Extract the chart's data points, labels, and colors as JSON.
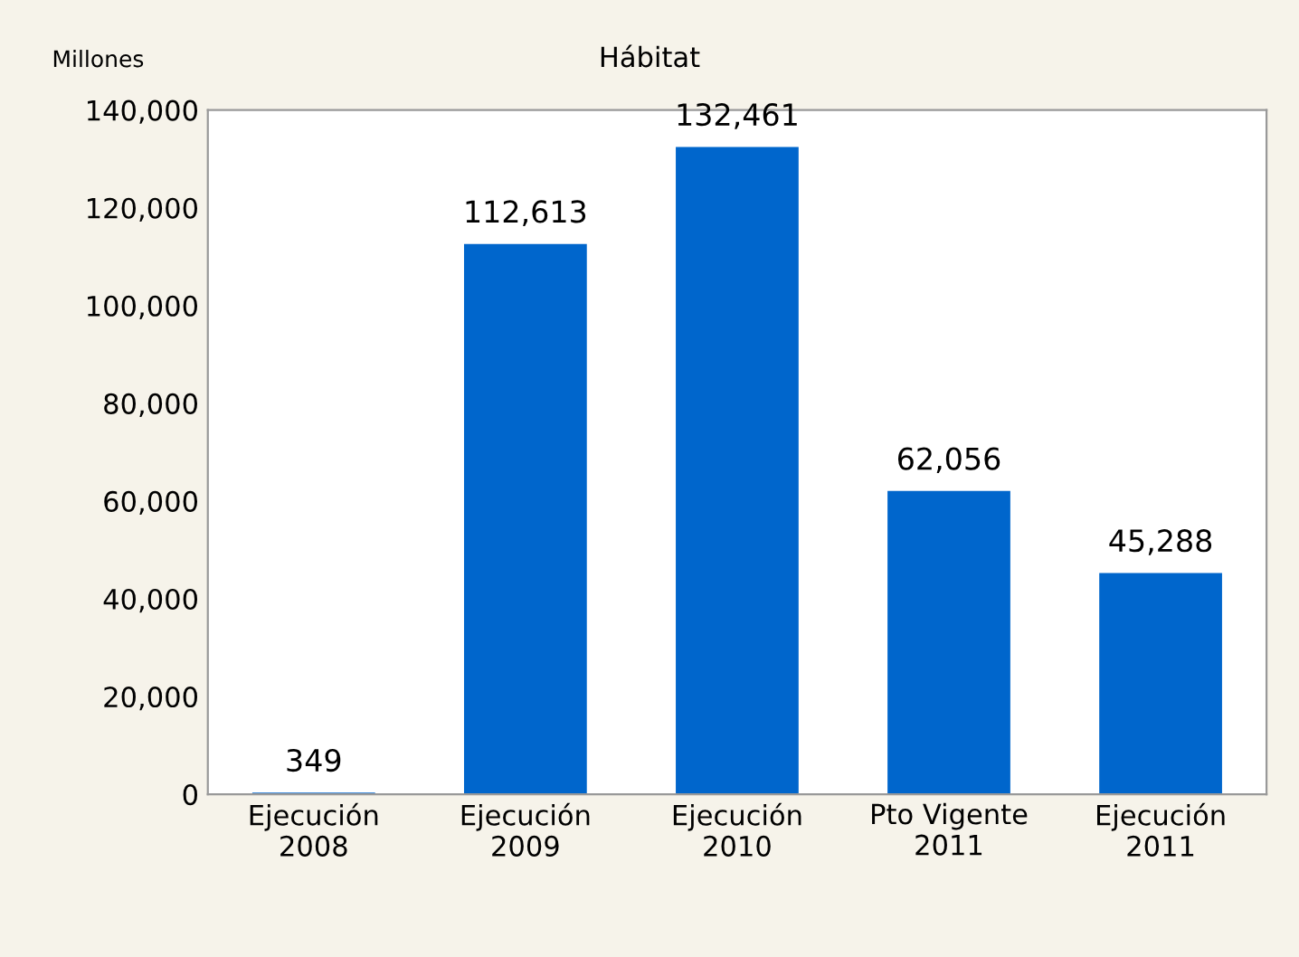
{
  "chart_data": {
    "type": "bar",
    "title": "Hábitat",
    "ylabel": "Millones",
    "categories": [
      "Ejecución\n2008",
      "Ejecución\n2009",
      "Ejecución\n2010",
      "Pto Vigente\n2011",
      "Ejecución\n2011"
    ],
    "values": [
      349,
      112613,
      132461,
      62056,
      45288
    ],
    "value_labels": [
      "349",
      "112,613",
      "132,461",
      "62,056",
      "45,288"
    ],
    "color": "#0066cc",
    "ylim": [
      0,
      140000
    ],
    "yticks": [
      {
        "value": 0,
        "label": "0"
      },
      {
        "value": 20000,
        "label": "20,000"
      },
      {
        "value": 40000,
        "label": "40,000"
      },
      {
        "value": 60000,
        "label": "60,000"
      },
      {
        "value": 80000,
        "label": "80,000"
      },
      {
        "value": 100000,
        "label": "100,000"
      },
      {
        "value": 120000,
        "label": "120,000"
      },
      {
        "value": 140000,
        "label": "140,000"
      }
    ],
    "grid": false,
    "legend": false
  }
}
